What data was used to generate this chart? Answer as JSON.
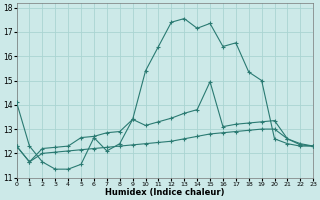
{
  "xlabel": "Humidex (Indice chaleur)",
  "bg_color": "#cce9e8",
  "grid_color": "#aad4d2",
  "line_color": "#2a7a72",
  "xlim": [
    0,
    23
  ],
  "ylim": [
    11,
    18.2
  ],
  "xticks": [
    0,
    1,
    2,
    3,
    4,
    5,
    6,
    7,
    8,
    9,
    10,
    11,
    12,
    13,
    14,
    15,
    16,
    17,
    18,
    19,
    20,
    21,
    22,
    23
  ],
  "yticks": [
    11,
    12,
    13,
    14,
    15,
    16,
    17,
    18
  ],
  "line1_x": [
    0,
    1,
    2,
    3,
    4,
    5,
    6,
    7,
    8,
    9,
    10,
    11,
    12,
    13,
    14,
    15,
    16,
    17,
    18,
    19,
    20,
    21,
    22,
    23
  ],
  "line1_y": [
    14.1,
    12.3,
    11.65,
    11.35,
    11.35,
    11.55,
    12.65,
    12.1,
    12.4,
    13.4,
    15.4,
    16.4,
    17.4,
    17.55,
    17.15,
    17.35,
    16.4,
    16.55,
    15.35,
    15.0,
    12.6,
    12.4,
    12.3,
    12.3
  ],
  "line2_x": [
    0,
    1,
    2,
    3,
    4,
    5,
    6,
    7,
    8,
    9,
    10,
    11,
    12,
    13,
    14,
    15,
    16,
    17,
    18,
    19,
    20,
    21,
    22,
    23
  ],
  "line2_y": [
    12.3,
    11.65,
    12.2,
    12.25,
    12.3,
    12.65,
    12.7,
    12.85,
    12.9,
    13.4,
    13.15,
    13.3,
    13.45,
    13.65,
    13.8,
    14.95,
    13.1,
    13.2,
    13.25,
    13.3,
    13.35,
    12.6,
    12.4,
    12.3
  ],
  "line3_x": [
    0,
    1,
    2,
    3,
    4,
    5,
    6,
    7,
    8,
    9,
    10,
    11,
    12,
    13,
    14,
    15,
    16,
    17,
    18,
    19,
    20,
    21,
    22,
    23
  ],
  "line3_y": [
    12.3,
    11.65,
    12.0,
    12.05,
    12.1,
    12.15,
    12.2,
    12.25,
    12.3,
    12.35,
    12.4,
    12.45,
    12.5,
    12.6,
    12.7,
    12.8,
    12.85,
    12.9,
    12.95,
    13.0,
    13.0,
    12.6,
    12.35,
    12.3
  ]
}
